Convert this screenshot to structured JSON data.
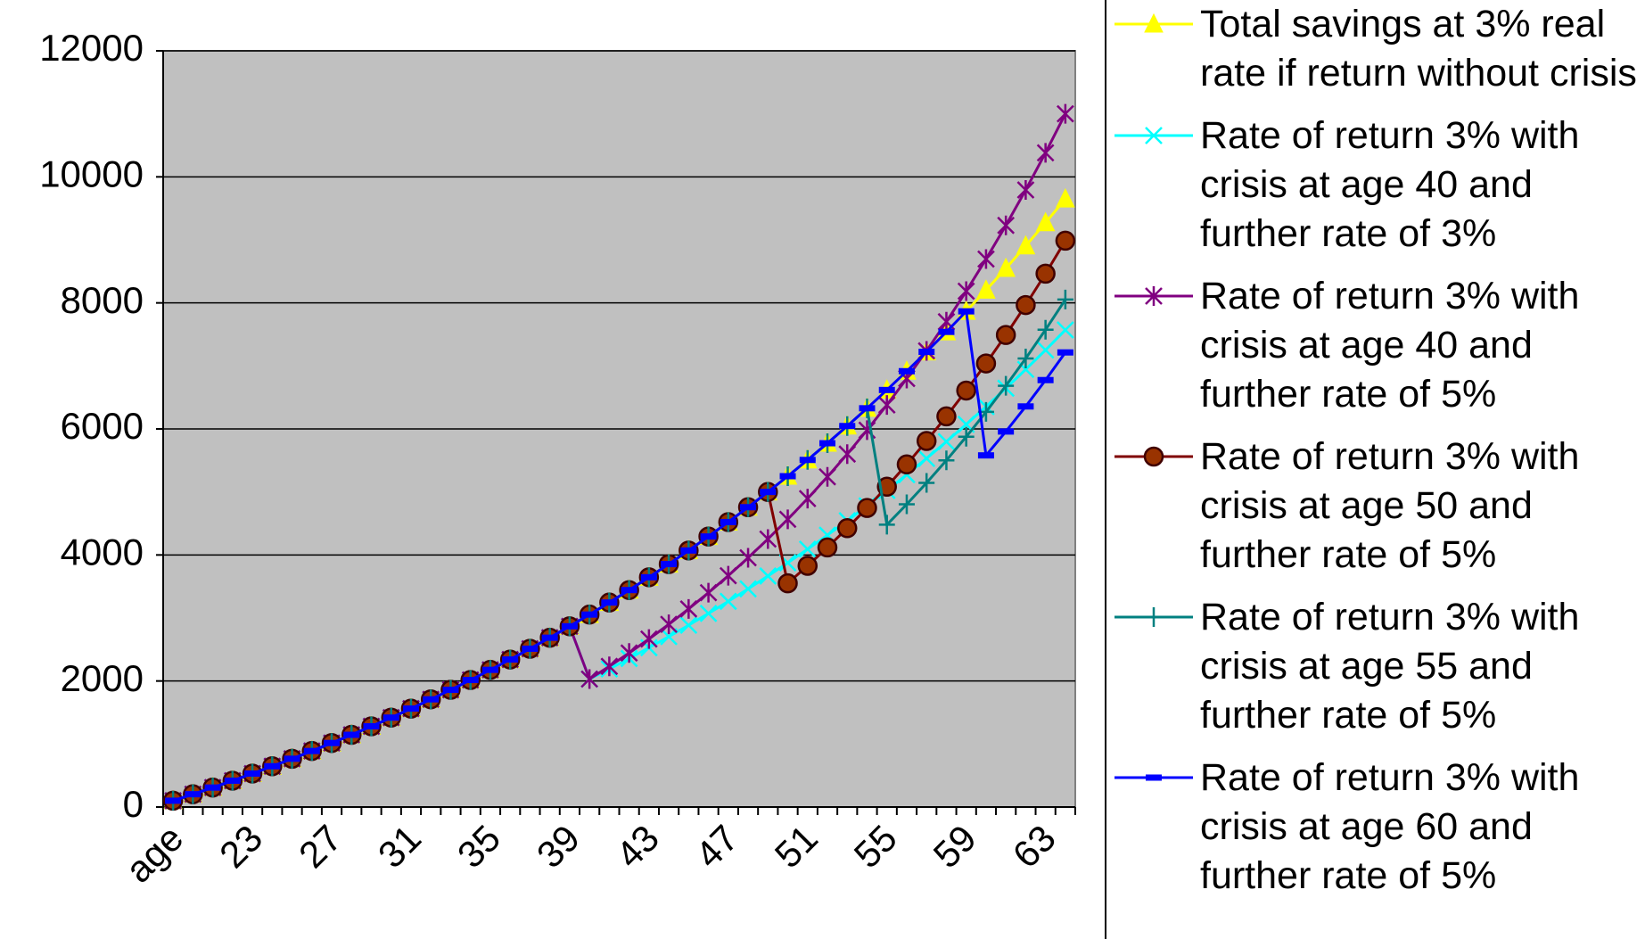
{
  "chart_data": {
    "type": "line",
    "categories": [
      "age",
      null,
      null,
      null,
      "23",
      null,
      null,
      null,
      "27",
      null,
      null,
      null,
      "31",
      null,
      null,
      null,
      "35",
      null,
      null,
      null,
      "39",
      null,
      null,
      null,
      "43",
      null,
      null,
      null,
      "47",
      null,
      null,
      null,
      "51",
      null,
      null,
      null,
      "55",
      null,
      null,
      null,
      "59",
      null,
      null,
      null,
      "63",
      null
    ],
    "ylim": [
      0,
      12000
    ],
    "yticks": [
      0,
      2000,
      4000,
      6000,
      8000,
      10000,
      12000
    ],
    "grid": true,
    "legend": "right",
    "series": [
      {
        "name": "Total savings at 3% real rate if return without crisis",
        "color": "#ffff00",
        "marker": "triangle",
        "values": [
          100,
          203,
          309,
          418,
          531,
          647,
          766,
          889,
          1016,
          1146,
          1281,
          1419,
          1562,
          1709,
          1860,
          2016,
          2177,
          2341,
          2512,
          2687,
          2868,
          3054,
          3245,
          3443,
          3646,
          3855,
          4071,
          4293,
          4522,
          4758,
          5000,
          5250,
          5508,
          5773,
          6046,
          6328,
          6618,
          6916,
          7223,
          7540,
          7866,
          8202,
          8548,
          8905,
          9272,
          9650
        ]
      },
      {
        "name": "Rate of return 3% with crisis at age 40 and further rate of 3%",
        "color": "#00ffff",
        "marker": "x",
        "values": [
          100,
          203,
          309,
          418,
          531,
          647,
          766,
          889,
          1016,
          1146,
          1281,
          1419,
          1562,
          1709,
          1860,
          2016,
          2177,
          2341,
          2512,
          2687,
          2868,
          2030,
          2191,
          2357,
          2528,
          2704,
          2885,
          3072,
          3264,
          3462,
          3666,
          3876,
          4092,
          4315,
          4544,
          4780,
          5023,
          5274,
          5532,
          5798,
          6072,
          6354,
          6645,
          6944,
          7252,
          7570
        ]
      },
      {
        "name": "Rate of return 3% with crisis at age 40 and further rate of 5%",
        "color": "#800080",
        "marker": "asterisk",
        "values": [
          100,
          203,
          309,
          418,
          531,
          647,
          766,
          889,
          1016,
          1146,
          1281,
          1419,
          1562,
          1709,
          1860,
          2016,
          2177,
          2341,
          2512,
          2687,
          2868,
          2030,
          2232,
          2444,
          2666,
          2899,
          3144,
          3401,
          3671,
          3955,
          4253,
          4566,
          4894,
          5239,
          5601,
          5981,
          6380,
          6799,
          7239,
          7701,
          8186,
          8695,
          9230,
          9792,
          10382,
          11001
        ]
      },
      {
        "name": "Rate of return 3% with crisis at age 50 and further rate of 5%",
        "color": "#800000",
        "marker": "circle",
        "values": [
          100,
          203,
          309,
          418,
          531,
          647,
          766,
          889,
          1016,
          1146,
          1281,
          1419,
          1562,
          1709,
          1860,
          2016,
          2177,
          2341,
          2512,
          2687,
          2868,
          3054,
          3245,
          3443,
          3646,
          3855,
          4071,
          4293,
          4522,
          4758,
          5000,
          3550,
          3828,
          4119,
          4425,
          4746,
          5083,
          5437,
          5809,
          6199,
          6609,
          7039,
          7491,
          7966,
          8464,
          8987
        ]
      },
      {
        "name": "Rate of return 3% with crisis at age 55 and further rate of 5%",
        "color": "#008080",
        "marker": "plus",
        "values": [
          100,
          203,
          309,
          418,
          531,
          647,
          766,
          889,
          1016,
          1146,
          1281,
          1419,
          1562,
          1709,
          1860,
          2016,
          2177,
          2341,
          2512,
          2687,
          2868,
          3054,
          3245,
          3443,
          3646,
          3855,
          4071,
          4293,
          4522,
          4758,
          5000,
          5250,
          5508,
          5773,
          6046,
          6328,
          4480,
          4804,
          5144,
          5501,
          5876,
          6270,
          6684,
          7118,
          7574,
          8053
        ]
      },
      {
        "name": "Rate of return 3% with crisis at age 60 and further rate of 5%",
        "color": "#0000ff",
        "marker": "square",
        "values": [
          100,
          203,
          309,
          418,
          531,
          647,
          766,
          889,
          1016,
          1146,
          1281,
          1419,
          1562,
          1709,
          1860,
          2016,
          2177,
          2341,
          2512,
          2687,
          2868,
          3054,
          3245,
          3443,
          3646,
          3855,
          4071,
          4293,
          4522,
          4758,
          5000,
          5250,
          5508,
          5773,
          6046,
          6328,
          6618,
          6916,
          7223,
          7540,
          7866,
          5580,
          5959,
          6357,
          6775,
          7214
        ]
      }
    ]
  }
}
